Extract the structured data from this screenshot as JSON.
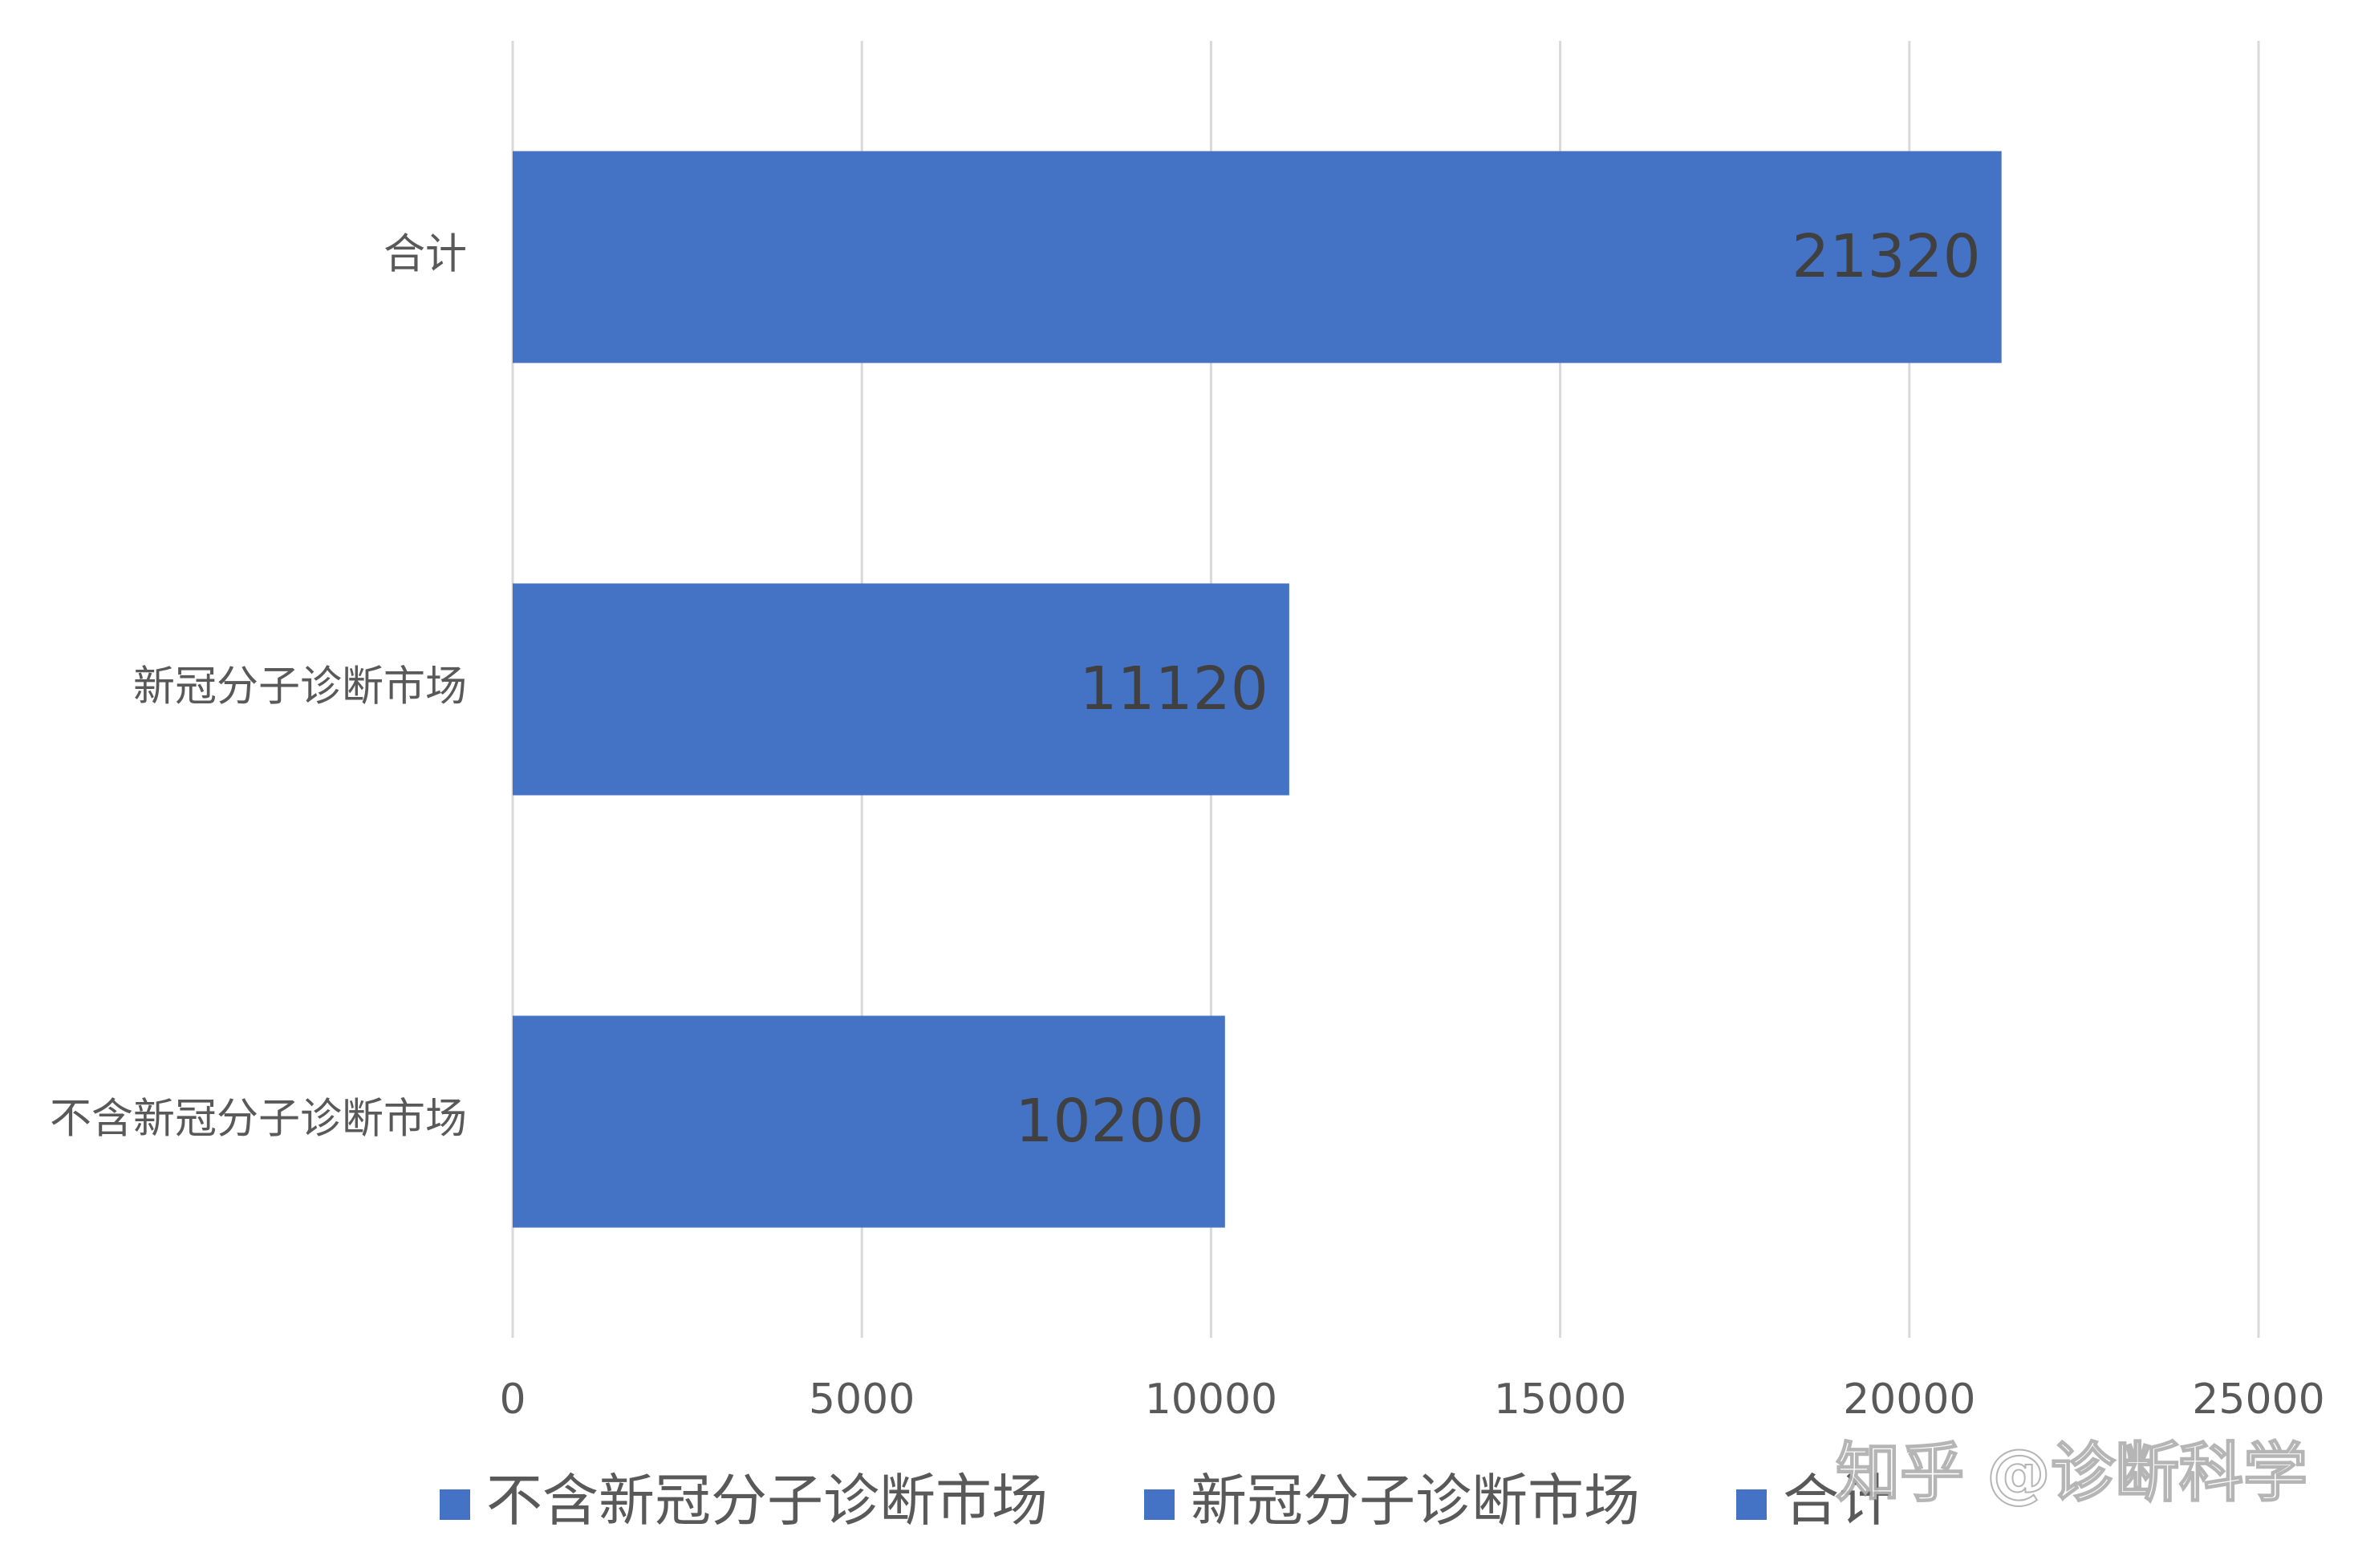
{
  "chart_data": {
    "type": "bar",
    "orientation": "horizontal",
    "categories": [
      "不含新冠分子诊断市场",
      "新冠分子诊断市场",
      "合计"
    ],
    "values": [
      10200,
      11120,
      21320
    ],
    "color": "#4472c4",
    "xlim": [
      0,
      25000
    ],
    "xticks": [
      0,
      5000,
      10000,
      15000,
      20000,
      25000
    ],
    "grid": true,
    "legend": "bottom",
    "watermark": "知乎 @诊断科学"
  }
}
